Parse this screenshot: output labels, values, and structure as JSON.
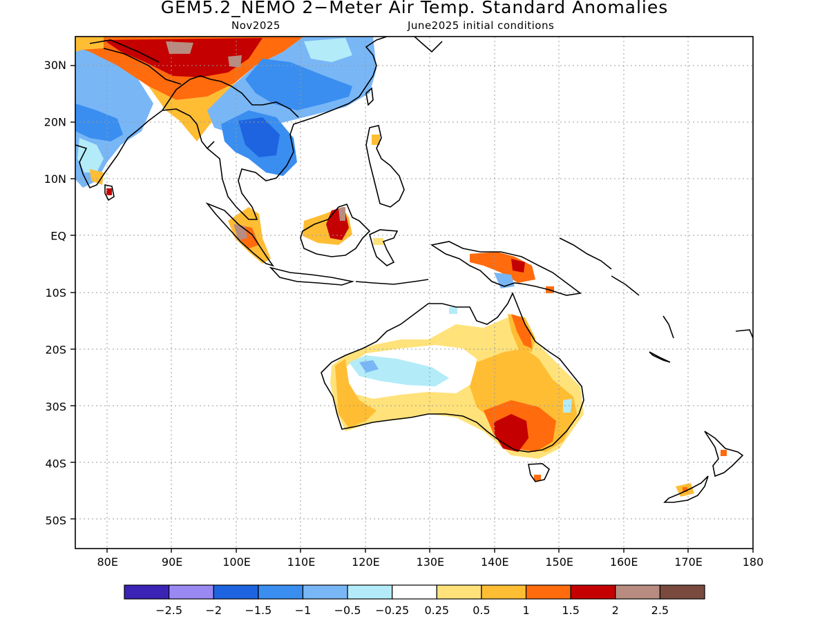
{
  "title": "GEM5.2_NEMO 2−Meter Air Temp. Standard Anomalies",
  "subtitle_left": "Nov2025",
  "subtitle_right": "June2025 initial conditions",
  "map": {
    "lon_range": [
      75,
      180
    ],
    "lat_range": [
      -55,
      35
    ],
    "lon_ticks": [
      {
        "value": 80,
        "label": "80E"
      },
      {
        "value": 90,
        "label": "90E"
      },
      {
        "value": 100,
        "label": "100E"
      },
      {
        "value": 110,
        "label": "110E"
      },
      {
        "value": 120,
        "label": "120E"
      },
      {
        "value": 130,
        "label": "130E"
      },
      {
        "value": 140,
        "label": "140E"
      },
      {
        "value": 150,
        "label": "150E"
      },
      {
        "value": 160,
        "label": "160E"
      },
      {
        "value": 170,
        "label": "170E"
      },
      {
        "value": 180,
        "label": "180"
      }
    ],
    "lat_ticks": [
      {
        "value": 30,
        "label": "30N"
      },
      {
        "value": 20,
        "label": "20N"
      },
      {
        "value": 10,
        "label": "10N"
      },
      {
        "value": 0,
        "label": "EQ"
      },
      {
        "value": -10,
        "label": "10S"
      },
      {
        "value": -20,
        "label": "20S"
      },
      {
        "value": -30,
        "label": "30S"
      },
      {
        "value": -40,
        "label": "40S"
      },
      {
        "value": -50,
        "label": "50S"
      }
    ],
    "gridlines": "dotted"
  },
  "colorbar": {
    "colors": [
      "#3a23b5",
      "#9a89f3",
      "#1e64e0",
      "#3a8ef0",
      "#78b6f6",
      "#b3ecf8",
      "#ffffff",
      "#ffe27a",
      "#ffbd34",
      "#ff6b0d",
      "#c40000",
      "#b88c80",
      "#7a4a3e"
    ],
    "labels": [
      "−2.5",
      "−2",
      "−1.5",
      "−1",
      "−0.5",
      "−0.25",
      "0.25",
      "0.5",
      "1",
      "1.5",
      "2",
      "2.5"
    ]
  },
  "palette": {
    "strong_neg": "#1e64e0",
    "neg": "#3a8ef0",
    "mid_neg": "#78b6f6",
    "weak_neg": "#b3ecf8",
    "weak_pos": "#ffe27a",
    "pos": "#ffbd34",
    "mid_pos": "#ff6b0d",
    "strong_pos": "#c40000",
    "extreme_pos": "#b88c80"
  }
}
